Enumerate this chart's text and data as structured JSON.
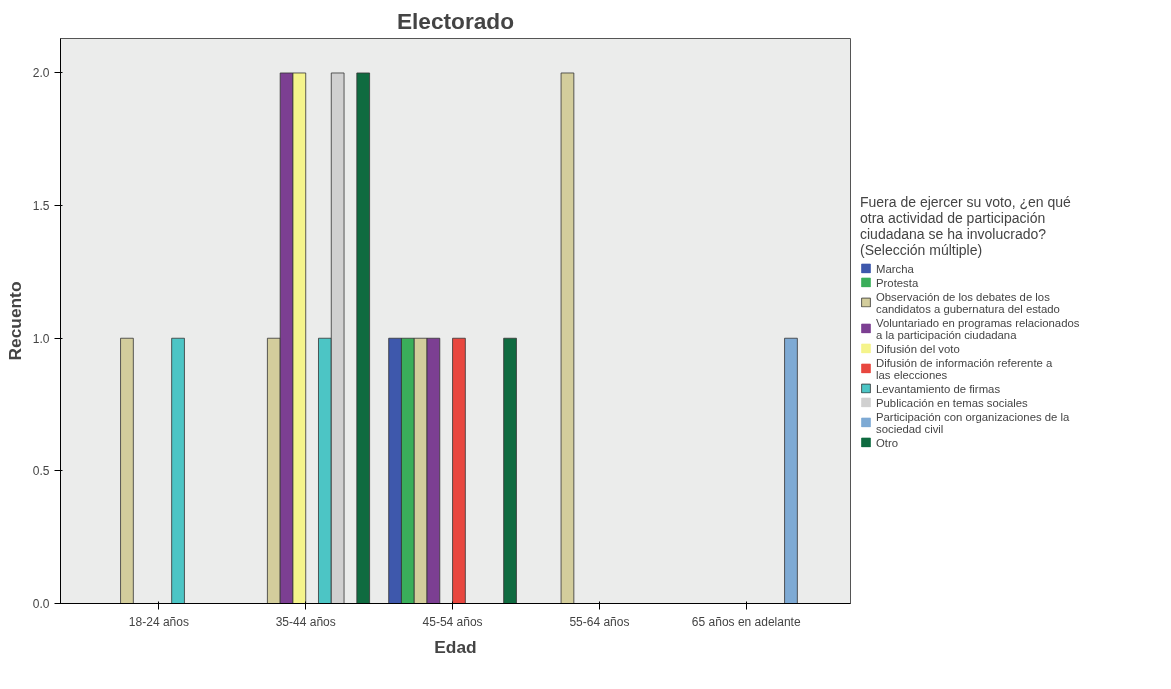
{
  "chart_data": {
    "type": "bar",
    "title": "Electorado",
    "xlabel": "Edad",
    "ylabel": "Recuento",
    "legend_title": "Fuera de ejercer su voto, ¿en qué otra actividad de participación ciudadana se ha involucrado? (Selección múltiple)",
    "categories": [
      "18-24 años",
      "35-44 años",
      "45-54 años",
      "55-64 años",
      "65 años en adelante"
    ],
    "series": [
      {
        "name": "Marcha",
        "color": "#3e58ac",
        "values": [
          0,
          0,
          1,
          0,
          0
        ]
      },
      {
        "name": "Protesta",
        "color": "#3aae5a",
        "values": [
          0,
          0,
          1,
          0,
          0
        ]
      },
      {
        "name": "Observación de los debates de los candidatos a gubernatura del estado",
        "color": "#d3cd9c",
        "values": [
          1,
          1,
          1,
          2,
          0
        ]
      },
      {
        "name": "Voluntariado en programas relacionados a la participación ciudadana",
        "color": "#7c3f92",
        "values": [
          0,
          2,
          1,
          0,
          0
        ]
      },
      {
        "name": "Difusión del voto",
        "color": "#f5f48c",
        "values": [
          0,
          2,
          0,
          0,
          0
        ]
      },
      {
        "name": "Difusión de información referente a las elecciones",
        "color": "#e8473f",
        "values": [
          0,
          0,
          1,
          0,
          0
        ]
      },
      {
        "name": "Levantamiento de firmas",
        "color": "#4cc5c5",
        "values": [
          1,
          1,
          0,
          0,
          0
        ]
      },
      {
        "name": "Publicación en temas sociales",
        "color": "#d0d0d0",
        "values": [
          0,
          2,
          0,
          0,
          0
        ]
      },
      {
        "name": "Participación con organizaciones de la sociedad civil",
        "color": "#7eaad4",
        "values": [
          0,
          0,
          0,
          0,
          1
        ]
      },
      {
        "name": "Otro",
        "color": "#0f6b40",
        "values": [
          0,
          2,
          1,
          0,
          0
        ]
      }
    ],
    "ylim": [
      0,
      2.13
    ],
    "yticks": [
      {
        "value": 0,
        "label": "0.0"
      },
      {
        "value": 0.5,
        "label": "0.5"
      },
      {
        "value": 1,
        "label": "1.0"
      },
      {
        "value": 1.5,
        "label": "1.5"
      },
      {
        "value": 2,
        "label": "2.0"
      }
    ],
    "grid": false,
    "legend": "right"
  }
}
